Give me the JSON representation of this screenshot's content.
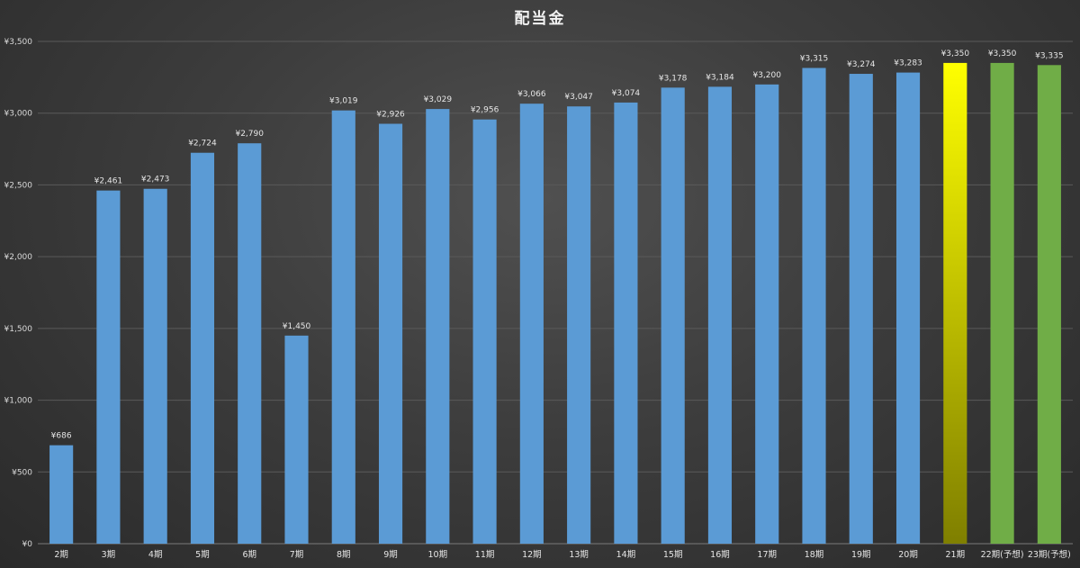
{
  "chart_data": {
    "type": "bar",
    "title": "配当金",
    "xlabel": "",
    "ylabel": "",
    "ylim": [
      0,
      3500
    ],
    "y_ticks": [
      "¥0",
      "¥500",
      "¥1,000",
      "¥1,500",
      "¥2,000",
      "¥2,500",
      "¥3,000",
      "¥3,500"
    ],
    "grid": true,
    "categories": [
      "2期",
      "3期",
      "4期",
      "5期",
      "6期",
      "7期",
      "8期",
      "9期",
      "10期",
      "11期",
      "12期",
      "13期",
      "14期",
      "15期",
      "16期",
      "17期",
      "18期",
      "19期",
      "20期",
      "21期",
      "22期(予想)",
      "23期(予想)"
    ],
    "values": [
      686,
      2461,
      2473,
      2724,
      2790,
      1450,
      3019,
      2926,
      3029,
      2956,
      3066,
      3047,
      3074,
      3178,
      3184,
      3200,
      3315,
      3274,
      3283,
      3350,
      3350,
      3335
    ],
    "data_labels": [
      "¥686",
      "¥2,461",
      "¥2,473",
      "¥2,724",
      "¥2,790",
      "¥1,450",
      "¥3,019",
      "¥2,926",
      "¥3,029",
      "¥2,956",
      "¥3,066",
      "¥3,047",
      "¥3,074",
      "¥3,178",
      "¥3,184",
      "¥3,200",
      "¥3,315",
      "¥3,274",
      "¥3,283",
      "¥3,350",
      "¥3,350",
      "¥3,335"
    ],
    "bar_colors": [
      "blue",
      "blue",
      "blue",
      "blue",
      "blue",
      "blue",
      "blue",
      "blue",
      "blue",
      "blue",
      "blue",
      "blue",
      "blue",
      "blue",
      "blue",
      "blue",
      "blue",
      "blue",
      "blue",
      "yellow-gradient",
      "green",
      "green"
    ],
    "colors": {
      "blue": "#5b9bd5",
      "yellow_top": "#ffff00",
      "yellow_bottom": "#7f7f00",
      "green": "#70ad47",
      "grid": "#5a5a5a"
    }
  }
}
